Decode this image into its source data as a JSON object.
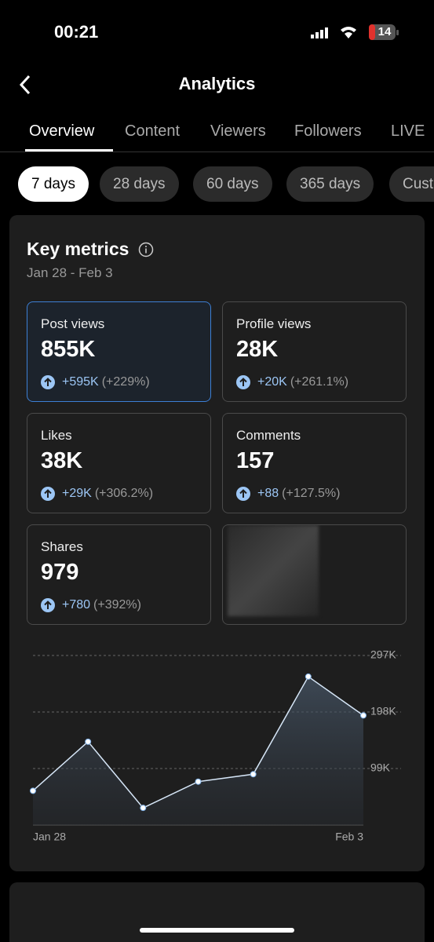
{
  "status_bar": {
    "time": "00:21",
    "battery": "14"
  },
  "header": {
    "title": "Analytics"
  },
  "tabs": [
    "Overview",
    "Content",
    "Viewers",
    "Followers",
    "LIVE"
  ],
  "ranges": [
    "7 days",
    "28 days",
    "60 days",
    "365 days",
    "Custom"
  ],
  "key_metrics": {
    "title": "Key metrics",
    "dates": "Jan 28 - Feb 3",
    "cards": [
      {
        "label": "Post views",
        "value": "855K",
        "change": "+595K",
        "percent": "(+229%)"
      },
      {
        "label": "Profile views",
        "value": "28K",
        "change": "+20K",
        "percent": "(+261.1%)"
      },
      {
        "label": "Likes",
        "value": "38K",
        "change": "+29K",
        "percent": "(+306.2%)"
      },
      {
        "label": "Comments",
        "value": "157",
        "change": "+88",
        "percent": "(+127.5%)"
      },
      {
        "label": "Shares",
        "value": "979",
        "change": "+780",
        "percent": "(+392%)"
      }
    ]
  },
  "chart": {
    "type": "line",
    "categories": [
      "Jan 28",
      null,
      null,
      null,
      null,
      null,
      "Feb 3"
    ],
    "values": [
      60000,
      146000,
      30000,
      76000,
      89000,
      260000,
      192000
    ],
    "ylim": [
      0,
      297000
    ],
    "yticks": [
      {
        "value": 99000,
        "label": "99K"
      },
      {
        "value": 198000,
        "label": "198K"
      },
      {
        "value": 297000,
        "label": "297K"
      }
    ],
    "grid": true,
    "color": "#d6e6f7"
  }
}
